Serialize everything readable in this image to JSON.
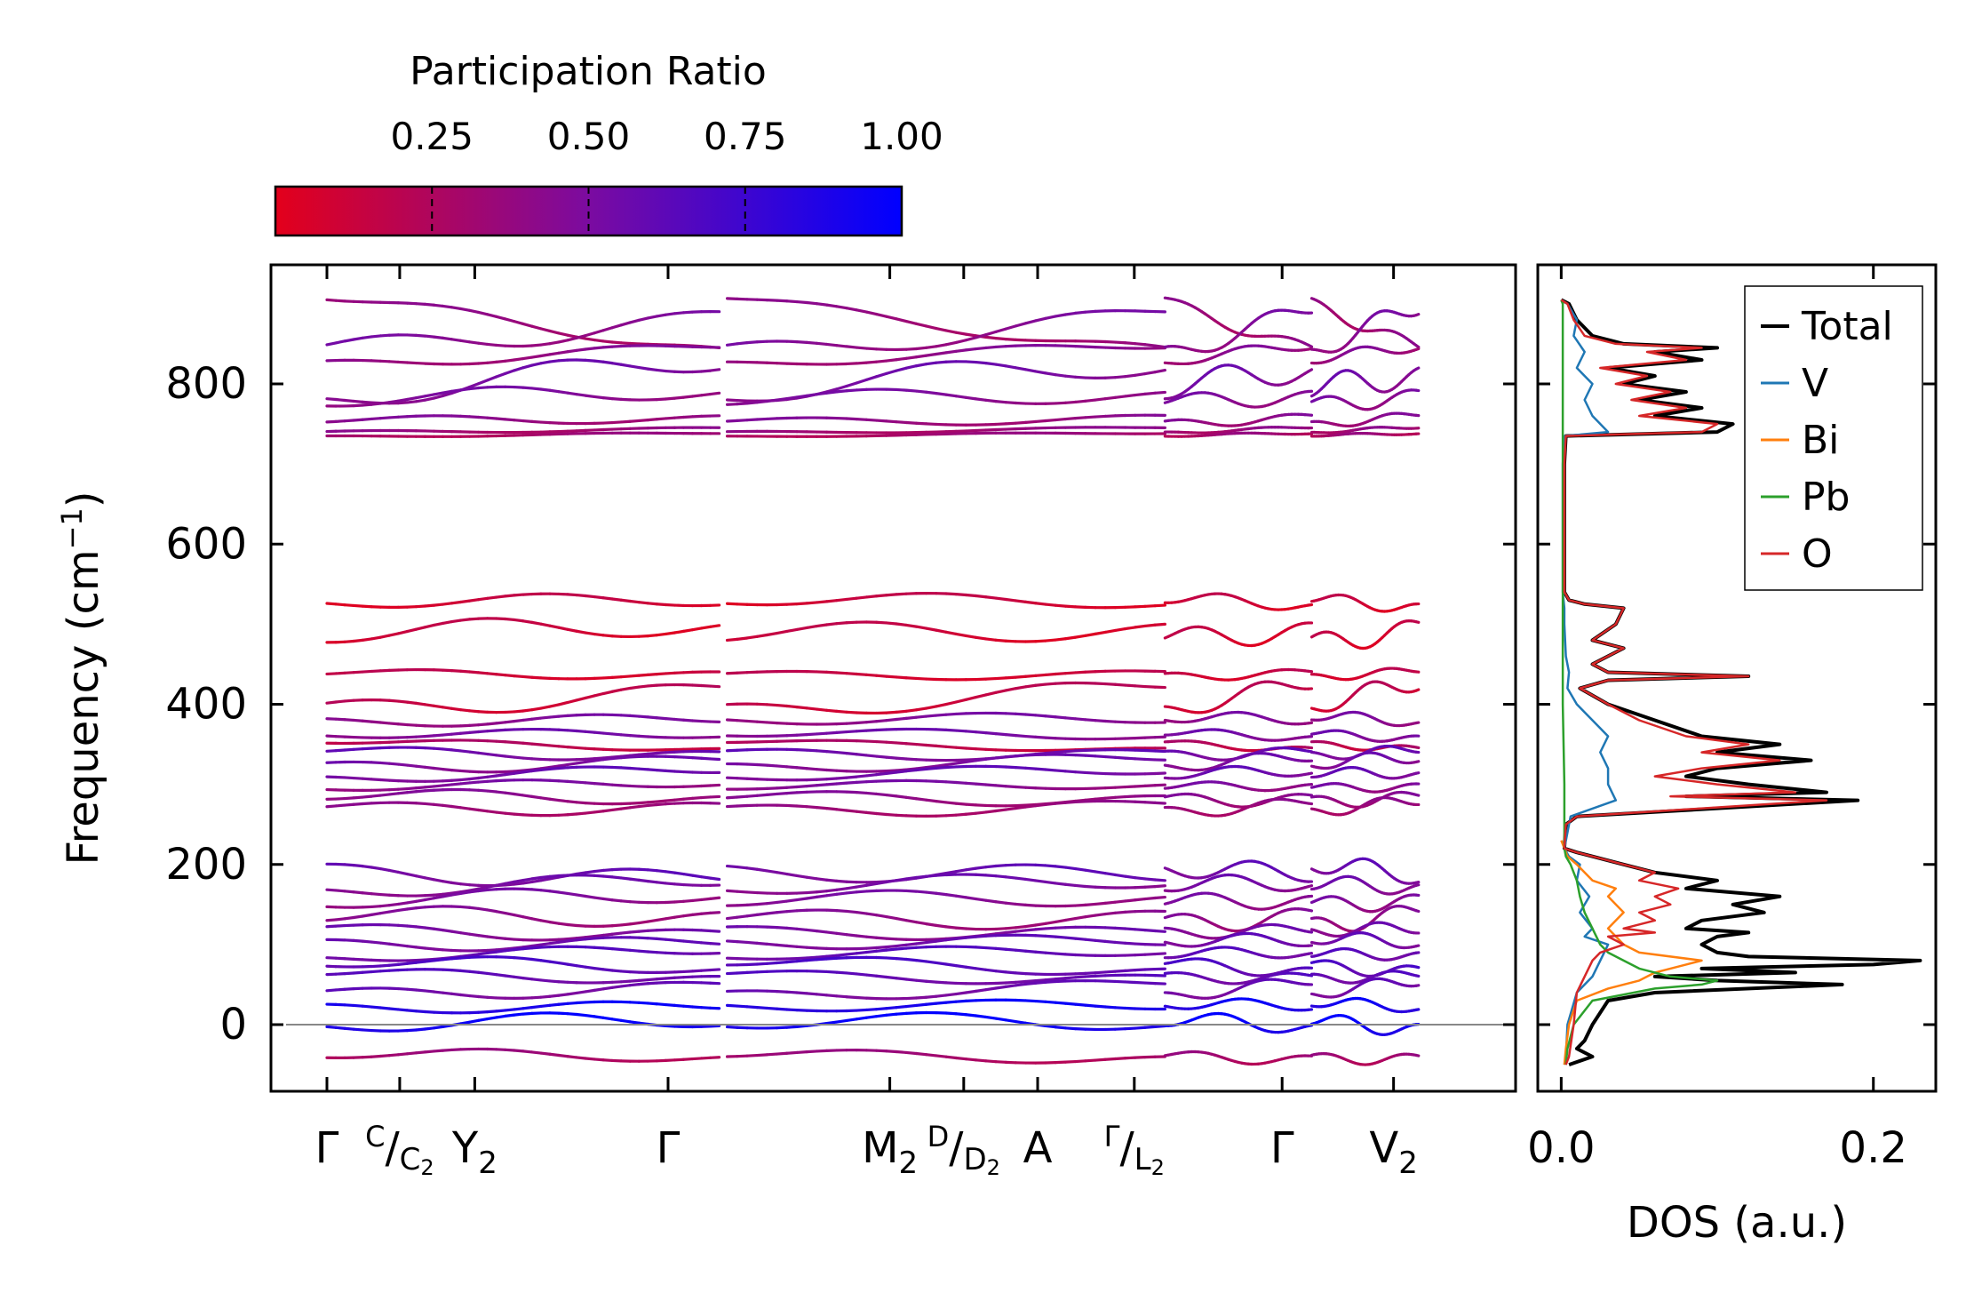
{
  "chart_data": [
    {
      "type": "colorbar",
      "title": "Participation Ratio",
      "ticks": [
        "0.25",
        "0.50",
        "0.75",
        "1.00"
      ],
      "tick_values": [
        0.25,
        0.5,
        0.75,
        1.0
      ],
      "range": [
        0.0,
        1.0
      ],
      "colors": {
        "low": "#e3001b",
        "mid": "#7b0ba0",
        "high": "#0000ff"
      }
    },
    {
      "type": "line",
      "name": "phonon-dispersion",
      "ylabel": "Frequency (cm",
      "ylabel_sup": "−1",
      "ylabel_tail": ")",
      "ylim": [
        -90,
        950
      ],
      "yticks": [
        "0",
        "200",
        "400",
        "600",
        "800"
      ],
      "ytick_values": [
        0,
        200,
        400,
        600,
        800
      ],
      "xlim": [
        0,
        1
      ],
      "segments": [
        {
          "start": 0.0,
          "end": 0.345
        },
        {
          "start": 0.352,
          "end": 0.737
        },
        {
          "start": 0.737,
          "end": 0.866
        },
        {
          "start": 0.866,
          "end": 0.96
        }
      ],
      "high_symmetry_points": [
        {
          "main": "Γ",
          "sup": "",
          "sep": "",
          "sub_main": "",
          "sub": "",
          "x": 0.0
        },
        {
          "main": "",
          "sup": "C",
          "sep": "/",
          "sub_main": "C",
          "sub": "2",
          "x": 0.064
        },
        {
          "main": "Y",
          "sup": "",
          "sep": "",
          "sub_main": "",
          "sub": "2",
          "x": 0.13
        },
        {
          "main": "Γ",
          "sup": "",
          "sep": "",
          "sub_main": "",
          "sub": "",
          "x": 0.3
        },
        {
          "main": "M",
          "sup": "",
          "sep": "",
          "sub_main": "",
          "sub": "2",
          "x": 0.495
        },
        {
          "main": "",
          "sup": "D",
          "sep": "/",
          "sub_main": "D",
          "sub": "2",
          "x": 0.56
        },
        {
          "main": "A",
          "sup": "",
          "sep": "",
          "sub_main": "",
          "sub": "",
          "x": 0.625
        },
        {
          "main": "",
          "sup": "Γ",
          "sep": "/",
          "sub_main": "L",
          "sub": "2",
          "x": 0.71
        },
        {
          "main": "Γ",
          "sup": "",
          "sep": "",
          "sub_main": "",
          "sub": "",
          "x": 0.84
        },
        {
          "main": "V",
          "sup": "",
          "sep": "",
          "sub_main": "",
          "sub": "2",
          "x": 0.938
        }
      ],
      "bands": [
        {
          "y0": 905,
          "y1": 845,
          "amp": 12,
          "pr": 0.35
        },
        {
          "y0": 845,
          "y1": 888,
          "amp": 20,
          "pr": 0.45
        },
        {
          "y0": 828,
          "y1": 845,
          "amp": 10,
          "pr": 0.4
        },
        {
          "y0": 785,
          "y1": 820,
          "amp": 25,
          "pr": 0.5
        },
        {
          "y0": 775,
          "y1": 790,
          "amp": 15,
          "pr": 0.45
        },
        {
          "y0": 752,
          "y1": 760,
          "amp": 8,
          "pr": 0.4
        },
        {
          "y0": 740,
          "y1": 745,
          "amp": 3,
          "pr": 0.35
        },
        {
          "y0": 735,
          "y1": 738,
          "amp": 2,
          "pr": 0.3
        },
        {
          "y0": 528,
          "y1": 525,
          "amp": 12,
          "pr": 0.1
        },
        {
          "y0": 480,
          "y1": 500,
          "amp": 20,
          "pr": 0.1
        },
        {
          "y0": 437,
          "y1": 440,
          "amp": 8,
          "pr": 0.12
        },
        {
          "y0": 398,
          "y1": 420,
          "amp": 18,
          "pr": 0.15
        },
        {
          "y0": 382,
          "y1": 378,
          "amp": 10,
          "pr": 0.45
        },
        {
          "y0": 362,
          "y1": 360,
          "amp": 8,
          "pr": 0.5
        },
        {
          "y0": 352,
          "y1": 345,
          "amp": 6,
          "pr": 0.2
        },
        {
          "y0": 340,
          "y1": 340,
          "amp": 10,
          "pr": 0.55
        },
        {
          "y0": 325,
          "y1": 330,
          "amp": 12,
          "pr": 0.5
        },
        {
          "y0": 310,
          "y1": 315,
          "amp": 10,
          "pr": 0.55
        },
        {
          "y0": 295,
          "y1": 300,
          "amp": 8,
          "pr": 0.45
        },
        {
          "y0": 282,
          "y1": 285,
          "amp": 12,
          "pr": 0.4
        },
        {
          "y0": 270,
          "y1": 275,
          "amp": 12,
          "pr": 0.35
        },
        {
          "y0": 198,
          "y1": 180,
          "amp": 18,
          "pr": 0.55
        },
        {
          "y0": 170,
          "y1": 175,
          "amp": 15,
          "pr": 0.5
        },
        {
          "y0": 150,
          "y1": 160,
          "amp": 15,
          "pr": 0.45
        },
        {
          "y0": 130,
          "y1": 140,
          "amp": 18,
          "pr": 0.4
        },
        {
          "y0": 120,
          "y1": 115,
          "amp": 12,
          "pr": 0.5
        },
        {
          "y0": 105,
          "y1": 100,
          "amp": 12,
          "pr": 0.55
        },
        {
          "y0": 85,
          "y1": 90,
          "amp": 10,
          "pr": 0.6
        },
        {
          "y0": 75,
          "y1": 70,
          "amp": 12,
          "pr": 0.65
        },
        {
          "y0": 62,
          "y1": 60,
          "amp": 10,
          "pr": 0.6
        },
        {
          "y0": 40,
          "y1": 50,
          "amp": 12,
          "pr": 0.55
        },
        {
          "y0": 25,
          "y1": 20,
          "amp": 10,
          "pr": 0.9
        },
        {
          "y0": 0,
          "y1": 0,
          "amp": 15,
          "pr": 0.95
        },
        {
          "y0": -40,
          "y1": -40,
          "amp": 10,
          "pr": 0.3
        }
      ]
    },
    {
      "type": "line",
      "name": "density-of-states",
      "xlabel": "DOS (a.u.)",
      "xlim": [
        -0.015,
        0.24
      ],
      "xticks": [
        "0.0",
        "0.2"
      ],
      "xtick_values": [
        0.0,
        0.2
      ],
      "ylim": [
        -90,
        950
      ],
      "legend_position": "top-right",
      "series": [
        {
          "name": "Total",
          "color": "#000000",
          "freq": [
            -50,
            -40,
            -30,
            -20,
            0,
            30,
            40,
            50,
            55,
            60,
            65,
            70,
            75,
            80,
            85,
            90,
            100,
            110,
            115,
            120,
            130,
            140,
            150,
            160,
            170,
            180,
            190,
            200,
            210,
            215,
            220,
            250,
            260,
            280,
            285,
            290,
            300,
            310,
            320,
            330,
            340,
            350,
            360,
            380,
            400,
            420,
            430,
            435,
            440,
            450,
            470,
            480,
            500,
            520,
            525,
            530,
            540,
            600,
            700,
            735,
            740,
            750,
            760,
            770,
            780,
            790,
            800,
            810,
            820,
            830,
            840,
            845,
            850,
            860,
            880,
            900,
            905
          ],
          "dos": [
            0.005,
            0.02,
            0.01,
            0.015,
            0.02,
            0.03,
            0.06,
            0.18,
            0.1,
            0.06,
            0.15,
            0.09,
            0.2,
            0.23,
            0.12,
            0.1,
            0.09,
            0.1,
            0.12,
            0.08,
            0.09,
            0.13,
            0.11,
            0.14,
            0.08,
            0.1,
            0.06,
            0.04,
            0.02,
            0.01,
            0.002,
            0.003,
            0.01,
            0.19,
            0.08,
            0.17,
            0.12,
            0.08,
            0.1,
            0.16,
            0.1,
            0.14,
            0.09,
            0.06,
            0.03,
            0.012,
            0.03,
            0.12,
            0.03,
            0.02,
            0.04,
            0.02,
            0.035,
            0.04,
            0.015,
            0.005,
            0.002,
            0.002,
            0.002,
            0.003,
            0.1,
            0.11,
            0.06,
            0.09,
            0.05,
            0.08,
            0.04,
            0.06,
            0.03,
            0.09,
            0.06,
            0.1,
            0.04,
            0.02,
            0.01,
            0.005,
            0.0
          ],
          "width": 4
        },
        {
          "name": "V",
          "color": "#1f77b4",
          "freq": [
            -50,
            -40,
            0,
            40,
            60,
            80,
            100,
            110,
            120,
            140,
            160,
            180,
            200,
            210,
            220,
            260,
            280,
            300,
            320,
            340,
            360,
            380,
            400,
            420,
            440,
            460,
            500,
            520,
            540,
            600,
            700,
            735,
            740,
            760,
            780,
            800,
            820,
            840,
            860,
            880,
            900,
            905
          ],
          "dos": [
            0.002,
            0.003,
            0.004,
            0.01,
            0.02,
            0.025,
            0.03,
            0.015,
            0.02,
            0.012,
            0.018,
            0.01,
            0.012,
            0.005,
            0.002,
            0.006,
            0.035,
            0.03,
            0.03,
            0.025,
            0.03,
            0.02,
            0.01,
            0.004,
            0.005,
            0.003,
            0.002,
            0.002,
            0.001,
            0.001,
            0.001,
            0.002,
            0.03,
            0.02,
            0.015,
            0.02,
            0.01,
            0.015,
            0.008,
            0.01,
            0.004,
            0.0
          ],
          "width": 2.5
        },
        {
          "name": "Bi",
          "color": "#ff7f0e",
          "freq": [
            -50,
            -30,
            0,
            30,
            45,
            55,
            65,
            75,
            80,
            90,
            100,
            120,
            140,
            160,
            170,
            180,
            200,
            210,
            220,
            230
          ],
          "dos": [
            0.002,
            0.003,
            0.005,
            0.01,
            0.03,
            0.05,
            0.06,
            0.08,
            0.09,
            0.05,
            0.04,
            0.03,
            0.04,
            0.03,
            0.035,
            0.02,
            0.01,
            0.004,
            0.002,
            0.0
          ],
          "width": 2.5
        },
        {
          "name": "Pb",
          "color": "#2ca02c",
          "freq": [
            -50,
            -30,
            0,
            30,
            45,
            50,
            55,
            60,
            70,
            80,
            90,
            100,
            120,
            140,
            160,
            180,
            200,
            210,
            220,
            250,
            300,
            400,
            600,
            750,
            900,
            905
          ],
          "dos": [
            0.003,
            0.004,
            0.008,
            0.02,
            0.06,
            0.09,
            0.1,
            0.07,
            0.05,
            0.04,
            0.03,
            0.025,
            0.02,
            0.015,
            0.012,
            0.01,
            0.006,
            0.003,
            0.002,
            0.002,
            0.002,
            0.001,
            0.001,
            0.001,
            0.001,
            0.0
          ],
          "width": 2.5
        },
        {
          "name": "O",
          "color": "#d62728",
          "freq": [
            -50,
            -40,
            0,
            40,
            60,
            80,
            90,
            100,
            110,
            115,
            120,
            130,
            140,
            150,
            160,
            170,
            180,
            190,
            200,
            210,
            215,
            220,
            250,
            260,
            280,
            285,
            290,
            300,
            310,
            320,
            330,
            340,
            350,
            360,
            380,
            400,
            420,
            430,
            435,
            440,
            450,
            470,
            480,
            500,
            520,
            525,
            530,
            540,
            600,
            700,
            735,
            740,
            750,
            760,
            770,
            780,
            790,
            800,
            810,
            820,
            830,
            840,
            845,
            850,
            860,
            880,
            900,
            905
          ],
          "dos": [
            0.003,
            0.005,
            0.008,
            0.01,
            0.015,
            0.02,
            0.025,
            0.04,
            0.03,
            0.06,
            0.04,
            0.06,
            0.05,
            0.07,
            0.06,
            0.075,
            0.05,
            0.06,
            0.04,
            0.02,
            0.01,
            0.002,
            0.003,
            0.01,
            0.17,
            0.07,
            0.15,
            0.1,
            0.06,
            0.09,
            0.14,
            0.09,
            0.12,
            0.08,
            0.05,
            0.03,
            0.012,
            0.03,
            0.12,
            0.03,
            0.02,
            0.04,
            0.02,
            0.035,
            0.04,
            0.015,
            0.005,
            0.002,
            0.002,
            0.002,
            0.003,
            0.09,
            0.1,
            0.05,
            0.08,
            0.045,
            0.07,
            0.035,
            0.055,
            0.025,
            0.08,
            0.055,
            0.09,
            0.035,
            0.015,
            0.008,
            0.004,
            0.0
          ],
          "width": 2.5
        }
      ]
    }
  ]
}
